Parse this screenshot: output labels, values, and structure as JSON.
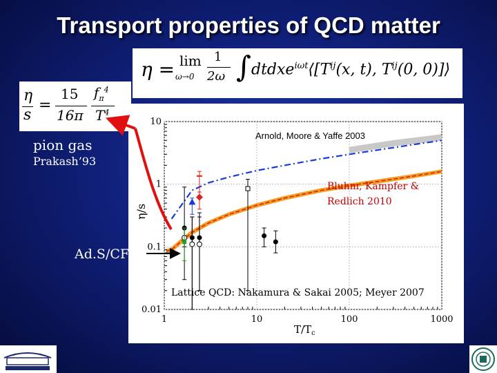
{
  "slide": {
    "title": "Transport properties of QCD matter"
  },
  "formulas": {
    "eta_kubo": "η = lim (1/2ω) ∫ dt dx e^{iωt} ⟨[T^{ij}(x,t), T^{ij}(0,0)]⟩",
    "eta_kubo_limit_subscript": "ω→0",
    "eta_over_s_pion": "η/s = (15/16π) f_π⁴/T⁴"
  },
  "labels": {
    "pion_gas": "pion gas",
    "prakash": "Prakash’93",
    "adscft": "Ad.S/CFT",
    "arnold": "Arnold, Moore & Yaffe 2003",
    "bluhm_line1": "Bluhm, Kampfer &",
    "bluhm_line2": "Redlich 2010",
    "lattice": "Lattice QCD: Nakamura & Sakai 2005; Meyer 2007"
  },
  "colors": {
    "red_arrow": "#e01010",
    "blue_dashdot": "#1a3ad8",
    "orange_band": "#f0a020",
    "red_curve": "#e02020",
    "gray_band": "#c8c8c8"
  },
  "chart_data": {
    "type": "line",
    "xscale": "log",
    "yscale": "log",
    "xlim": [
      1,
      1000
    ],
    "ylim": [
      0.01,
      10
    ],
    "xlabel": "T/T_c",
    "ylabel": "η/s",
    "x_tick_labels": [
      "1",
      "10",
      "100",
      "1000"
    ],
    "y_tick_labels": [
      "0.01",
      "0.1",
      "1",
      "10"
    ],
    "ads_cft_bound": 0.08,
    "series": [
      {
        "name": "Arnold, Moore & Yaffe 2003",
        "style": "blue-dashdot",
        "x": [
          1.2,
          2,
          3,
          5,
          10,
          20,
          50,
          100,
          200,
          500,
          1000
        ],
        "y": [
          0.28,
          0.8,
          1.05,
          1.3,
          1.65,
          2.0,
          2.55,
          3.0,
          3.5,
          4.3,
          5.0
        ]
      },
      {
        "name": "Bluhm, Kampfer & Redlich 2010",
        "style": "orange-band-red-line",
        "x": [
          1.05,
          1.2,
          1.5,
          2,
          3,
          5,
          10,
          20,
          50,
          100,
          200,
          500,
          1000
        ],
        "y": [
          0.085,
          0.09,
          0.12,
          0.17,
          0.24,
          0.33,
          0.46,
          0.6,
          0.8,
          0.95,
          1.1,
          1.35,
          1.6
        ]
      },
      {
        "name": "Arnold, Moore & Yaffe 2003 (high T)",
        "style": "gray-band",
        "x": [
          100,
          300,
          1000
        ],
        "y": [
          3.5,
          4.5,
          5.6
        ]
      }
    ],
    "lattice_points": [
      {
        "x": 1.65,
        "y": 0.2,
        "err_lo": 0.03,
        "err_hi": 0.9,
        "marker": "filled-circle"
      },
      {
        "x": 1.65,
        "y": 0.14,
        "err_lo": 0.1,
        "err_hi": 0.2,
        "marker": "open-circle"
      },
      {
        "x": 1.65,
        "y": 0.12,
        "err_lo": 0.06,
        "err_hi": 0.2,
        "marker": "green-square"
      },
      {
        "x": 2.0,
        "y": 0.52,
        "err_lo": 0.33,
        "err_hi": 0.6,
        "marker": "blue-triangle"
      },
      {
        "x": 2.0,
        "y": 0.14,
        "err_lo": 0.01,
        "err_hi": 0.3,
        "marker": "filled-circle"
      },
      {
        "x": 2.0,
        "y": 0.11,
        "err_lo": 0.01,
        "err_hi": 0.3,
        "marker": "open-circle"
      },
      {
        "x": 2.4,
        "y": 0.62,
        "err_lo": 0.4,
        "err_hi": 0.75,
        "marker": "red-diamond"
      },
      {
        "x": 2.4,
        "y": 0.14,
        "err_lo": 0.02,
        "err_hi": 0.35,
        "marker": "filled-circle"
      },
      {
        "x": 2.4,
        "y": 0.11,
        "err_lo": 0.02,
        "err_hi": 0.3,
        "marker": "open-circle"
      },
      {
        "x": 2.4,
        "y": 1.35,
        "err_lo": 0.6,
        "err_hi": 1.6,
        "marker": "red-dash"
      },
      {
        "x": 8.0,
        "y": 0.85,
        "err_lo": 0.02,
        "err_hi": 1.2,
        "marker": "open-square"
      },
      {
        "x": 12.0,
        "y": 0.15,
        "err_lo": 0.1,
        "err_hi": 0.2,
        "marker": "filled-circle"
      },
      {
        "x": 16.0,
        "y": 0.12,
        "err_lo": 0.08,
        "err_hi": 0.18,
        "marker": "filled-circle"
      }
    ]
  }
}
